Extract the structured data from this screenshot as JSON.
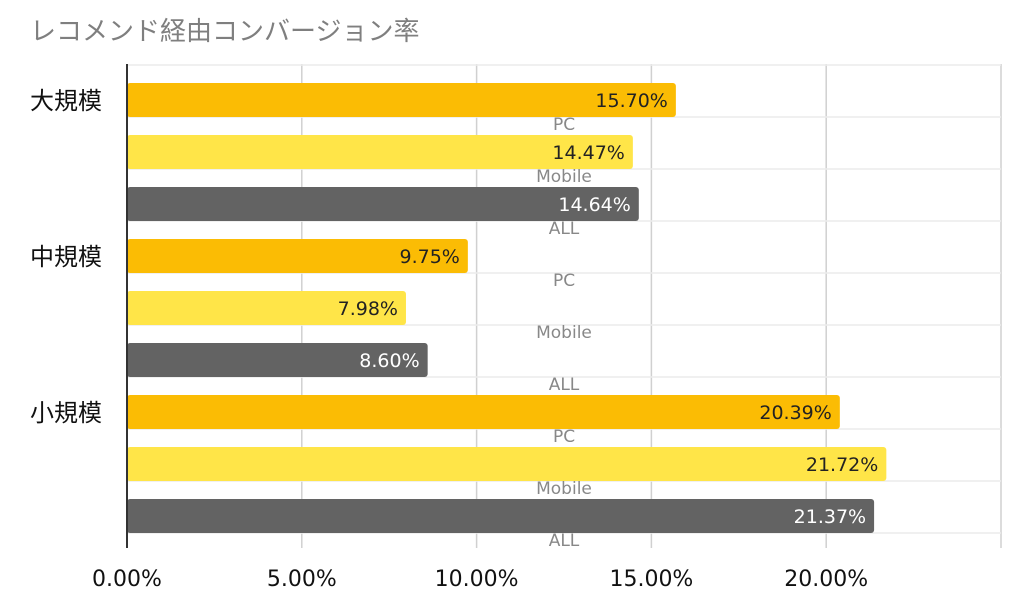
{
  "chart_data": {
    "type": "bar",
    "orientation": "horizontal",
    "title": "レコメンド経由コンバージョン率",
    "xlabel": "",
    "ylabel": "",
    "xlim": [
      0,
      25
    ],
    "x_ticks": [
      "0.00%",
      "5.00%",
      "10.00%",
      "15.00%",
      "20.00%"
    ],
    "grid": true,
    "legend": "none",
    "categories": [
      "大規模",
      "中規模",
      "小規模"
    ],
    "series": [
      {
        "name": "PC",
        "color": "#FBBC04",
        "label_color": "#222222",
        "values": [
          15.7,
          9.75,
          20.39
        ],
        "labels": [
          "15.70%",
          "9.75%",
          "20.39%"
        ]
      },
      {
        "name": "Mobile",
        "color": "#FFE548",
        "label_color": "#222222",
        "values": [
          14.47,
          7.98,
          21.72
        ],
        "labels": [
          "14.47%",
          "7.98%",
          "21.72%"
        ]
      },
      {
        "name": "ALL",
        "color": "#636363",
        "label_color": "#ffffff",
        "values": [
          14.64,
          8.6,
          21.37
        ],
        "labels": [
          "14.64%",
          "8.60%",
          "21.37%"
        ]
      }
    ]
  }
}
